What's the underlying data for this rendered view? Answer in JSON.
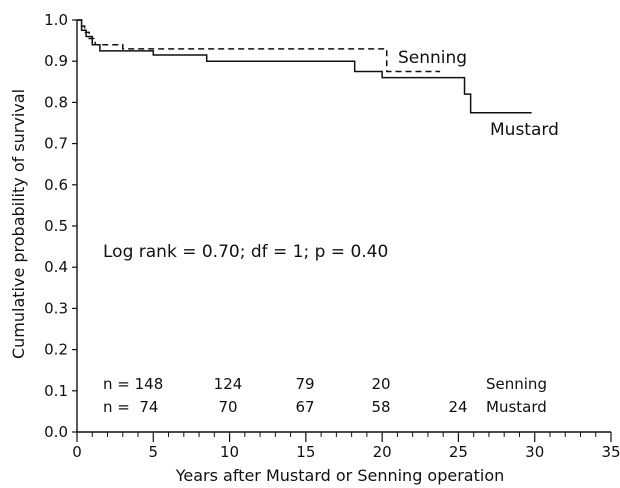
{
  "chart_data": {
    "type": "line",
    "subtype": "kaplan-meier step",
    "xlabel": "Years after Mustard or Senning operation",
    "ylabel": "Cumulative probability of survival",
    "xlim": [
      0,
      35
    ],
    "ylim": [
      0,
      1.0
    ],
    "x_ticks": [
      0,
      5,
      10,
      15,
      20,
      25,
      30,
      35
    ],
    "x_tick_labels": [
      "0",
      "5",
      "10",
      "15",
      "20",
      "25",
      "30",
      "35"
    ],
    "x_minor_step": 1,
    "y_ticks": [
      0.0,
      0.1,
      0.2,
      0.3,
      0.4,
      0.5,
      0.6,
      0.7,
      0.8,
      0.9,
      1.0
    ],
    "y_tick_labels": [
      "0.0",
      "0.1",
      "0.2",
      "0.3",
      "0.4",
      "0.5",
      "0.6",
      "0.7",
      "0.8",
      "0.9",
      "1.0"
    ],
    "grid": false,
    "annotation": "Log rank = 0.70; df = 1; p = 0.40",
    "series": [
      {
        "name": "Senning",
        "style": "dashed",
        "color": "#111111",
        "x": [
          0,
          0.3,
          0.5,
          0.8,
          1.2,
          3,
          20.3,
          23.8
        ],
        "y": [
          1.0,
          0.985,
          0.97,
          0.955,
          0.94,
          0.93,
          0.875,
          0.875
        ]
      },
      {
        "name": "Mustard",
        "style": "solid",
        "color": "#111111",
        "x": [
          0,
          0.3,
          0.6,
          1.0,
          1.5,
          5.0,
          8.5,
          18.2,
          20.0,
          25.4,
          25.8,
          29.8
        ],
        "y": [
          1.0,
          0.975,
          0.96,
          0.94,
          0.925,
          0.915,
          0.9,
          0.875,
          0.86,
          0.82,
          0.775,
          0.775
        ]
      }
    ],
    "numbers_at_risk": {
      "rows": [
        {
          "prefix": "n = 148",
          "values": [
            "124",
            "79",
            "20"
          ],
          "label": "Senning"
        },
        {
          "prefix": "n =  74",
          "values": [
            "70",
            "67",
            "58",
            "24"
          ],
          "label": "Mustard"
        }
      ]
    }
  }
}
